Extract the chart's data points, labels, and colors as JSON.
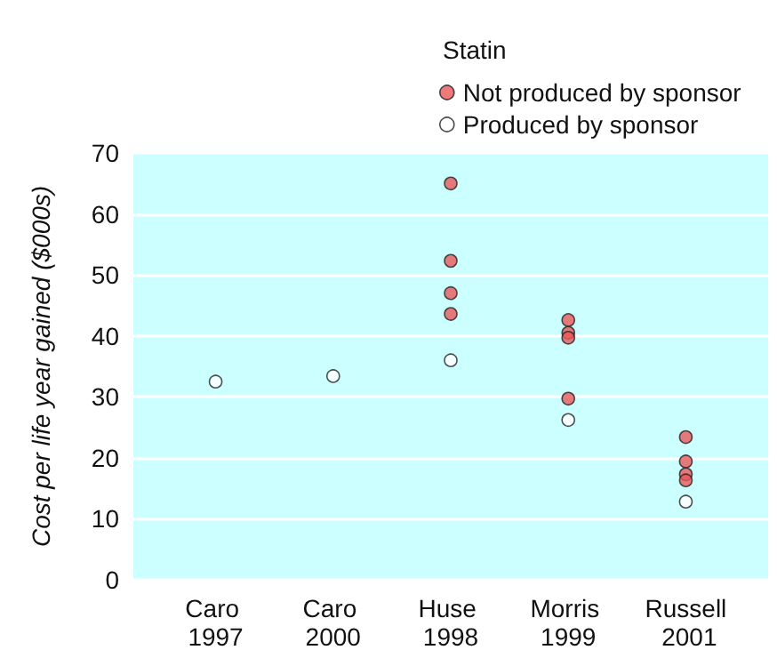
{
  "chart_data": {
    "type": "scatter",
    "ylabel": "Cost per life year gained ($000s)",
    "legend_title": "Statin",
    "legend": "top right",
    "grid": "y",
    "marker": "circle",
    "categories": [
      "Caro 1997",
      "Caro 2000",
      "Huse 1998",
      "Morris 1999",
      "Russell 2001"
    ],
    "ylim": [
      0,
      70
    ],
    "yticks": [
      0,
      10,
      20,
      30,
      40,
      50,
      60,
      70
    ],
    "series": [
      {
        "name": "Not produced by sponsor",
        "color": "#e8585a",
        "x": [
          "Huse 1998",
          "Huse 1998",
          "Huse 1998",
          "Huse 1998",
          "Morris 1999",
          "Morris 1999",
          "Morris 1999",
          "Morris 1999",
          "Russell 2001",
          "Russell 2001",
          "Russell 2001",
          "Russell 2001"
        ],
        "values": [
          65,
          52.3,
          47,
          43.6,
          42.6,
          40.5,
          39.7,
          29.7,
          23.4,
          19.4,
          17.3,
          16.3
        ]
      },
      {
        "name": "Produced by sponsor",
        "color": "#ffffff",
        "x": [
          "Caro 1997",
          "Caro 2000",
          "Huse 1998",
          "Morris 1999",
          "Russell 2001"
        ],
        "values": [
          32.5,
          33.4,
          36,
          26.2,
          12.8
        ]
      }
    ]
  }
}
